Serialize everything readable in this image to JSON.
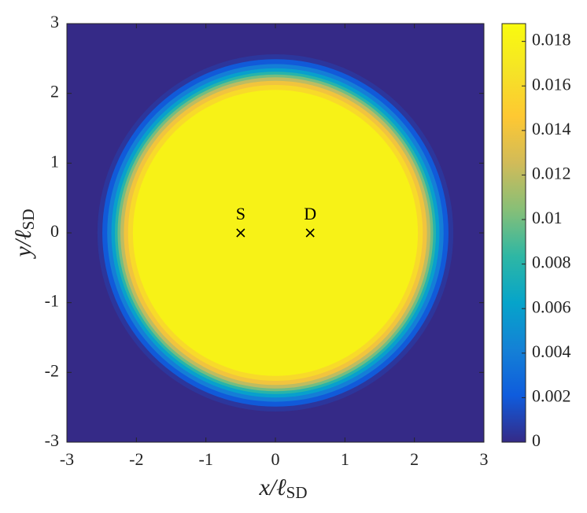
{
  "chart_data": {
    "type": "contour",
    "xlabel": {
      "main": "x/ℓ",
      "sub": "SD"
    },
    "ylabel": {
      "main": "y/ℓ",
      "sub": "SD"
    },
    "xlim": [
      -3,
      3
    ],
    "ylim": [
      -3,
      3
    ],
    "xticks": [
      -3,
      -2,
      -1,
      0,
      1,
      2,
      3
    ],
    "yticks": [
      -3,
      -2,
      -1,
      0,
      1,
      2,
      3
    ],
    "clim": [
      0,
      0.0188
    ],
    "cticks": [
      0,
      0.002,
      0.004,
      0.006,
      0.008,
      0.01,
      0.012,
      0.014,
      0.016,
      0.018
    ],
    "colormap": [
      "#352a87",
      "#0f5cdd",
      "#1481d6",
      "#06a4ca",
      "#2eb7a4",
      "#87bf77",
      "#d1bb59",
      "#fec832",
      "#f5e426",
      "#f9fb0e"
    ],
    "contours": [
      {
        "level": 0.0005,
        "radius": 2.56
      },
      {
        "level": 0.002,
        "radius": 2.49
      },
      {
        "level": 0.004,
        "radius": 2.42
      },
      {
        "level": 0.006,
        "radius": 2.36
      },
      {
        "level": 0.008,
        "radius": 2.31
      },
      {
        "level": 0.01,
        "radius": 2.27
      },
      {
        "level": 0.012,
        "radius": 2.23
      },
      {
        "level": 0.014,
        "radius": 2.18
      },
      {
        "level": 0.016,
        "radius": 2.12
      },
      {
        "level": 0.018,
        "radius": 2.05
      }
    ],
    "markers": [
      {
        "label": "S",
        "x": -0.5,
        "y": 0
      },
      {
        "label": "D",
        "x": 0.5,
        "y": 0
      }
    ]
  }
}
